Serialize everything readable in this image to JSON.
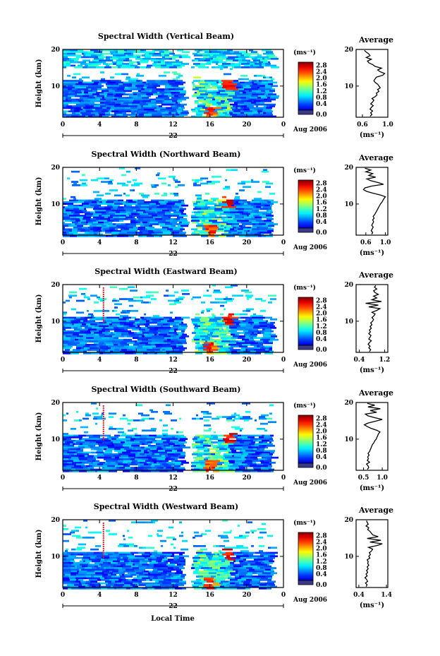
{
  "figure": {
    "x_label": "Local Time",
    "date_label": "Aug 2006",
    "day_label": "22"
  },
  "chart_data": [
    {
      "type": "heatmap",
      "title": "Spectral Width (Vertical Beam)",
      "ylabel": "Height (km)",
      "xlabel": "Local Time",
      "x_ticks": [
        "0",
        "4",
        "8",
        "12",
        "16",
        "20",
        "0"
      ],
      "y_ticks": [
        "20",
        "10"
      ],
      "xlim": [
        0,
        24
      ],
      "ylim": [
        1.5,
        20
      ],
      "colorbar": {
        "unit": "(ms⁻¹)",
        "ticks": [
          "2.8",
          "2.4",
          "2.0",
          "1.6",
          "1.2",
          "0.8",
          "0.4",
          "0.0"
        ],
        "range": [
          0,
          3.0
        ]
      },
      "profile": {
        "title": "Average",
        "xlabel": "(ms⁻¹)",
        "x_ticks": [
          "0.6",
          "1.0"
        ],
        "xlim": [
          0.5,
          1.0
        ],
        "y_ticks": [
          "20",
          "10"
        ],
        "values": [
          0.72,
          0.75,
          0.73,
          0.76,
          0.72,
          0.74,
          0.77,
          0.73,
          0.76,
          0.78,
          0.75,
          0.8,
          0.83,
          0.82,
          0.86,
          0.84,
          0.88,
          0.86,
          0.84,
          0.8,
          0.78,
          0.8,
          0.82,
          0.92,
          0.95,
          0.88,
          0.84,
          0.9,
          0.8,
          0.76,
          0.7,
          0.68,
          0.74,
          0.66,
          0.72,
          0.7,
          0.66,
          0.63
        ]
      }
    },
    {
      "type": "heatmap",
      "title": "Spectral Width (Northward Beam)",
      "ylabel": "Height (km)",
      "xlabel": "Local Time",
      "x_ticks": [
        "0",
        "4",
        "8",
        "12",
        "16",
        "20",
        "0"
      ],
      "y_ticks": [
        "20",
        "10"
      ],
      "xlim": [
        0,
        24
      ],
      "ylim": [
        1.5,
        20
      ],
      "colorbar": {
        "unit": "(ms⁻¹)",
        "ticks": [
          "2.8",
          "2.4",
          "2.0",
          "1.6",
          "1.2",
          "0.8",
          "0.4",
          "0.0"
        ],
        "range": [
          0,
          3.0
        ]
      },
      "profile": {
        "title": "Average",
        "xlabel": "(ms⁻¹)",
        "x_ticks": [
          "0.6",
          "1.0"
        ],
        "xlim": [
          0.4,
          1.05
        ],
        "y_ticks": [
          "20",
          "10"
        ],
        "values": [
          0.72,
          0.74,
          0.71,
          0.73,
          0.75,
          0.72,
          0.74,
          0.76,
          0.74,
          0.77,
          0.75,
          0.78,
          0.8,
          0.82,
          0.84,
          0.86,
          0.88,
          0.9,
          0.93,
          0.95,
          0.97,
          1.0,
          0.9,
          0.75,
          0.62,
          0.55,
          0.58,
          0.72,
          0.96,
          0.85,
          0.7,
          0.62,
          0.8,
          0.66,
          0.74,
          0.6,
          0.7,
          0.58
        ]
      }
    },
    {
      "type": "heatmap",
      "title": "Spectral Width (Eastward Beam)",
      "ylabel": "Height (km)",
      "xlabel": "Local Time",
      "x_ticks": [
        "0",
        "4",
        "8",
        "12",
        "16",
        "20",
        "0"
      ],
      "y_ticks": [
        "20",
        "10"
      ],
      "xlim": [
        0,
        24
      ],
      "ylim": [
        1.5,
        20
      ],
      "colorbar": {
        "unit": "(ms⁻¹)",
        "ticks": [
          "2.8",
          "2.4",
          "2.0",
          "1.6",
          "1.2",
          "0.8",
          "0.4",
          "0.0"
        ],
        "range": [
          0,
          3.0
        ]
      },
      "profile": {
        "title": "Average",
        "xlabel": "(ms⁻¹)",
        "x_ticks": [
          "0.4",
          "1.2"
        ],
        "xlim": [
          0.3,
          1.3
        ],
        "y_ticks": [
          "20",
          "10"
        ],
        "values": [
          0.72,
          0.76,
          0.7,
          0.74,
          0.68,
          0.72,
          0.78,
          0.7,
          0.74,
          0.77,
          0.7,
          0.75,
          0.72,
          0.78,
          0.74,
          0.8,
          0.76,
          0.82,
          0.85,
          0.8,
          0.86,
          0.9,
          0.8,
          0.95,
          1.05,
          0.7,
          1.0,
          0.6,
          1.1,
          0.8,
          0.95,
          0.85,
          1.0,
          0.9,
          0.85,
          0.95,
          0.88,
          0.92
        ]
      }
    },
    {
      "type": "heatmap",
      "title": "Spectral Width (Southward Beam)",
      "ylabel": "Height (km)",
      "xlabel": "Local Time",
      "x_ticks": [
        "0",
        "4",
        "8",
        "12",
        "16",
        "20",
        "0"
      ],
      "y_ticks": [
        "20",
        "10"
      ],
      "xlim": [
        0,
        24
      ],
      "ylim": [
        1.5,
        20
      ],
      "colorbar": {
        "unit": "(ms⁻¹)",
        "ticks": [
          "2.8",
          "2.4",
          "2.0",
          "1.6",
          "1.2",
          "0.8",
          "0.4",
          "0.0"
        ],
        "range": [
          0,
          3.0
        ]
      },
      "profile": {
        "title": "Average",
        "xlabel": "(ms⁻¹)",
        "x_ticks": [
          "0.5",
          "1.0"
        ],
        "xlim": [
          0.3,
          1.15
        ],
        "y_ticks": [
          "20",
          "10"
        ],
        "values": [
          0.6,
          0.64,
          0.62,
          0.58,
          0.66,
          0.6,
          0.63,
          0.61,
          0.65,
          0.62,
          0.66,
          0.68,
          0.7,
          0.72,
          0.74,
          0.78,
          0.8,
          0.84,
          0.86,
          0.88,
          0.9,
          0.94,
          0.85,
          0.7,
          0.6,
          0.52,
          0.62,
          0.82,
          1.0,
          0.8,
          0.62,
          0.55,
          0.85,
          0.68,
          0.95,
          0.62,
          0.8,
          0.6
        ]
      }
    },
    {
      "type": "heatmap",
      "title": "Spectral Width (Westward Beam)",
      "ylabel": "Height (km)",
      "xlabel": "Local Time",
      "x_ticks": [
        "0",
        "4",
        "8",
        "12",
        "16",
        "20",
        "0"
      ],
      "y_ticks": [
        "20",
        "10"
      ],
      "xlim": [
        0,
        24
      ],
      "ylim": [
        1.5,
        20
      ],
      "colorbar": {
        "unit": "(ms⁻¹)",
        "ticks": [
          "2.8",
          "2.4",
          "2.0",
          "1.6",
          "1.2",
          "0.8",
          "0.4",
          "0.0"
        ],
        "range": [
          0,
          3.0
        ]
      },
      "profile": {
        "title": "Average",
        "xlabel": "(ms⁻¹)",
        "x_ticks": [
          "0.4",
          "1.4"
        ],
        "xlim": [
          0.3,
          1.45
        ],
        "y_ticks": [
          "20",
          "10"
        ],
        "values": [
          0.66,
          0.7,
          0.64,
          0.72,
          0.68,
          0.62,
          0.7,
          0.66,
          0.72,
          0.68,
          0.74,
          0.7,
          0.76,
          0.72,
          0.74,
          0.7,
          0.8,
          0.76,
          0.82,
          0.78,
          0.86,
          0.9,
          0.75,
          1.05,
          1.25,
          0.8,
          1.2,
          0.7,
          1.1,
          0.9,
          0.85,
          0.8,
          0.72,
          0.76,
          0.66,
          0.74,
          0.7,
          0.68
        ]
      }
    }
  ]
}
